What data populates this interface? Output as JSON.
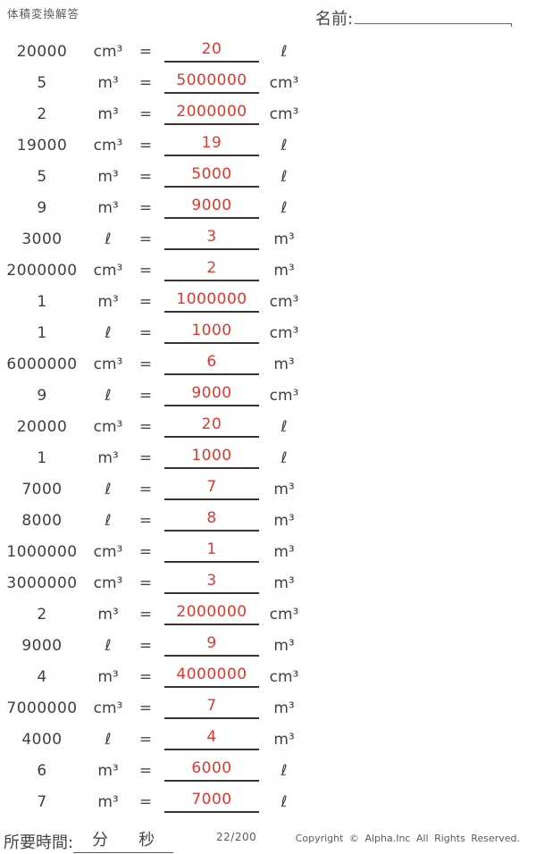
{
  "header": {
    "title": "体積変換解答",
    "name_label": "名前:"
  },
  "symbols": {
    "equals": "="
  },
  "colors": {
    "answer_red": "#e8352b",
    "text": "#433d3b",
    "line": "#3a3432"
  },
  "rows": [
    {
      "value": "20000",
      "unit_from": "cm³",
      "answer": "20",
      "unit_to": "ℓ"
    },
    {
      "value": "5",
      "unit_from": "m³",
      "answer": "5000000",
      "unit_to": "cm³"
    },
    {
      "value": "2",
      "unit_from": "m³",
      "answer": "2000000",
      "unit_to": "cm³"
    },
    {
      "value": "19000",
      "unit_from": "cm³",
      "answer": "19",
      "unit_to": "ℓ"
    },
    {
      "value": "5",
      "unit_from": "m³",
      "answer": "5000",
      "unit_to": "ℓ"
    },
    {
      "value": "9",
      "unit_from": "m³",
      "answer": "9000",
      "unit_to": "ℓ"
    },
    {
      "value": "3000",
      "unit_from": "ℓ",
      "answer": "3",
      "unit_to": "m³"
    },
    {
      "value": "2000000",
      "unit_from": "cm³",
      "answer": "2",
      "unit_to": "m³"
    },
    {
      "value": "1",
      "unit_from": "m³",
      "answer": "1000000",
      "unit_to": "cm³"
    },
    {
      "value": "1",
      "unit_from": "ℓ",
      "answer": "1000",
      "unit_to": "cm³"
    },
    {
      "value": "6000000",
      "unit_from": "cm³",
      "answer": "6",
      "unit_to": "m³"
    },
    {
      "value": "9",
      "unit_from": "ℓ",
      "answer": "9000",
      "unit_to": "cm³"
    },
    {
      "value": "20000",
      "unit_from": "cm³",
      "answer": "20",
      "unit_to": "ℓ"
    },
    {
      "value": "1",
      "unit_from": "m³",
      "answer": "1000",
      "unit_to": "ℓ"
    },
    {
      "value": "7000",
      "unit_from": "ℓ",
      "answer": "7",
      "unit_to": "m³"
    },
    {
      "value": "8000",
      "unit_from": "ℓ",
      "answer": "8",
      "unit_to": "m³"
    },
    {
      "value": "1000000",
      "unit_from": "cm³",
      "answer": "1",
      "unit_to": "m³"
    },
    {
      "value": "3000000",
      "unit_from": "cm³",
      "answer": "3",
      "unit_to": "m³"
    },
    {
      "value": "2",
      "unit_from": "m³",
      "answer": "2000000",
      "unit_to": "cm³"
    },
    {
      "value": "9000",
      "unit_from": "ℓ",
      "answer": "9",
      "unit_to": "m³"
    },
    {
      "value": "4",
      "unit_from": "m³",
      "answer": "4000000",
      "unit_to": "cm³"
    },
    {
      "value": "7000000",
      "unit_from": "cm³",
      "answer": "7",
      "unit_to": "m³"
    },
    {
      "value": "4000",
      "unit_from": "ℓ",
      "answer": "4",
      "unit_to": "m³"
    },
    {
      "value": "6",
      "unit_from": "m³",
      "answer": "6000",
      "unit_to": "ℓ"
    },
    {
      "value": "7",
      "unit_from": "m³",
      "answer": "7000",
      "unit_to": "ℓ"
    }
  ],
  "footer": {
    "time_label": "所要時間:",
    "minutes_label": "分",
    "seconds_label": "秒",
    "page": "22/200",
    "copyright": "Copyright © Alpha.Inc All Rights Reserved."
  }
}
